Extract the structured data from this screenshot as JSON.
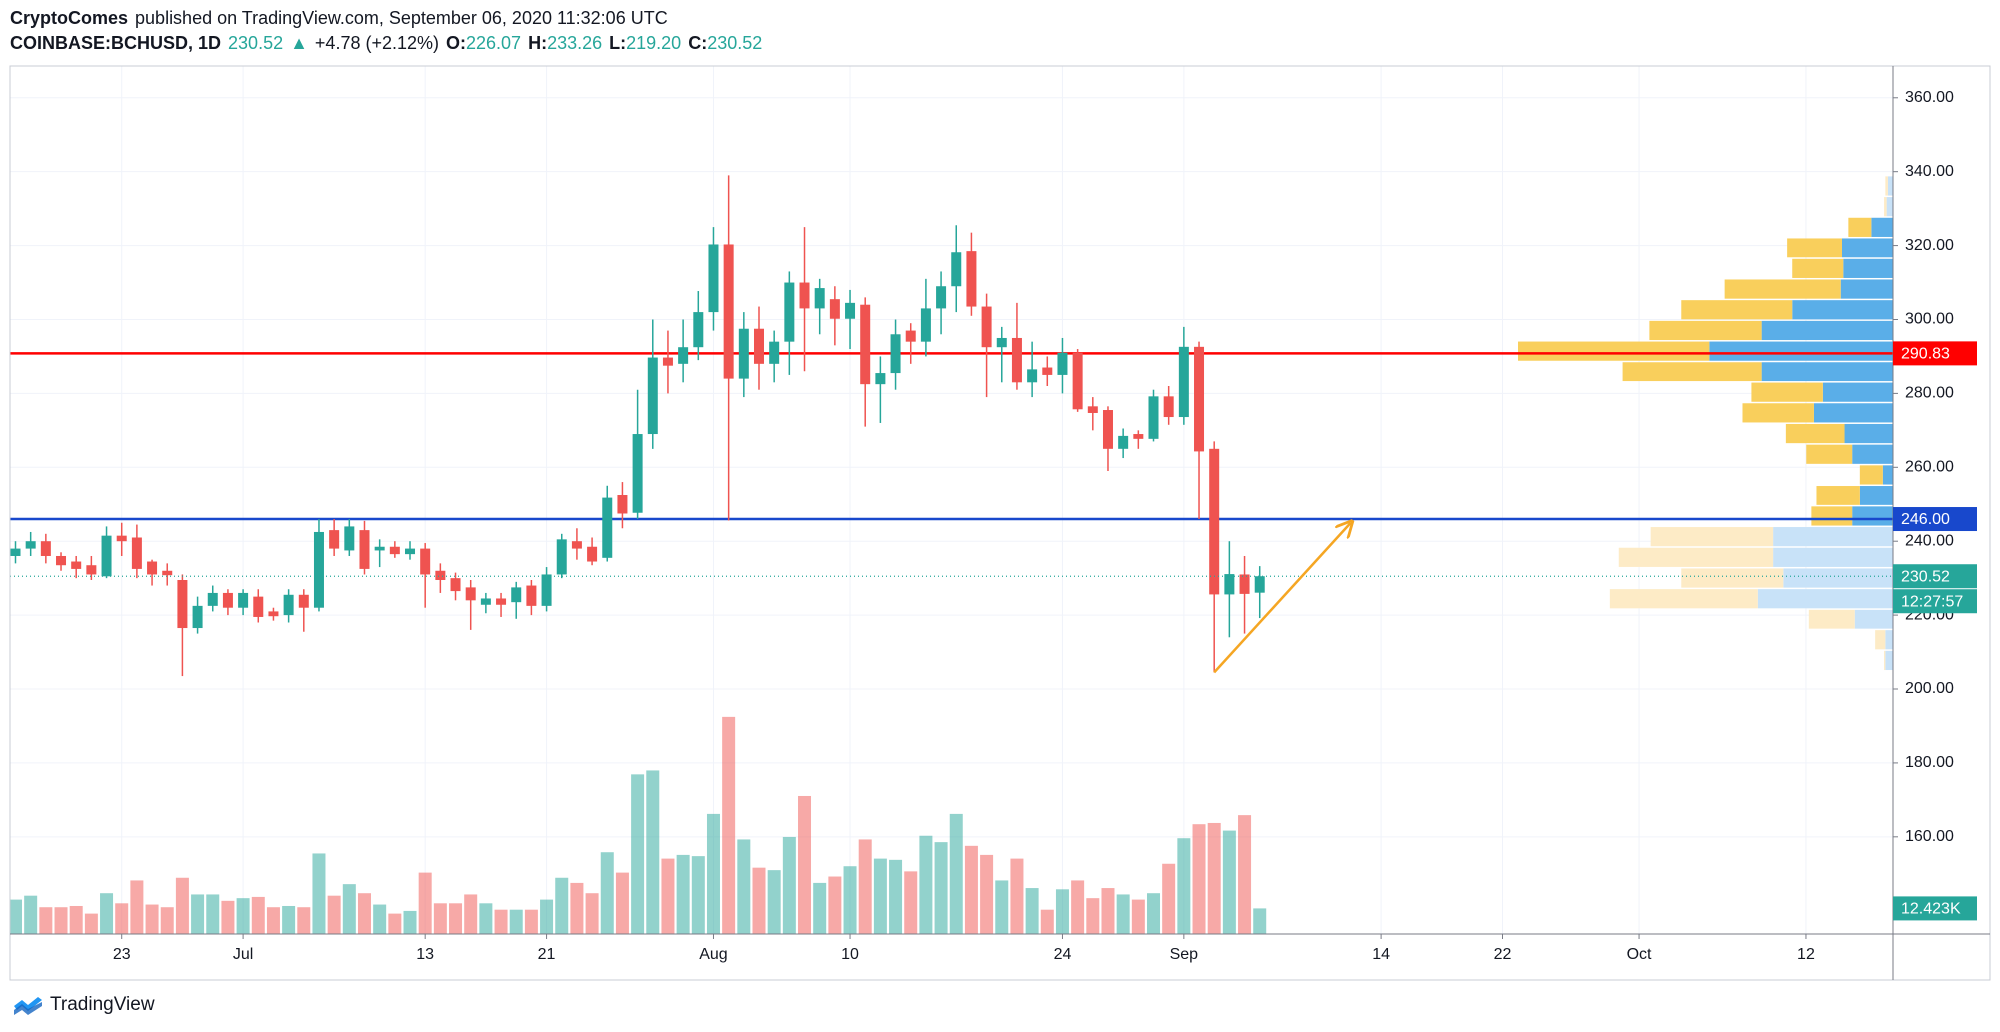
{
  "header": {
    "author": "CryptoComes",
    "published": "published on TradingView.com, September 06, 2020 11:32:06 UTC",
    "symbol": "COINBASE:BCHUSD, 1D",
    "last": "230.52",
    "arrow": "▲",
    "change": "+4.78 (+2.12%)",
    "o_label": "O:",
    "open": "226.07",
    "h_label": "H:",
    "high": "233.26",
    "l_label": "L:",
    "low": "219.20",
    "c_label": "C:",
    "close": "230.52"
  },
  "footer": {
    "brand": "TradingView"
  },
  "chart_data": {
    "type": "candlestick",
    "x": [
      "06-16",
      "06-17",
      "06-18",
      "06-19",
      "06-20",
      "06-21",
      "06-22",
      "06-23",
      "06-24",
      "06-25",
      "06-26",
      "06-27",
      "06-28",
      "06-29",
      "06-30",
      "07-01",
      "07-02",
      "07-03",
      "07-04",
      "07-05",
      "07-06",
      "07-07",
      "07-08",
      "07-09",
      "07-10",
      "07-11",
      "07-12",
      "07-13",
      "07-14",
      "07-15",
      "07-16",
      "07-17",
      "07-18",
      "07-19",
      "07-20",
      "07-21",
      "07-22",
      "07-23",
      "07-24",
      "07-25",
      "07-26",
      "07-27",
      "07-28",
      "07-29",
      "07-30",
      "07-31",
      "08-01",
      "08-02",
      "08-03",
      "08-04",
      "08-05",
      "08-06",
      "08-07",
      "08-08",
      "08-09",
      "08-10",
      "08-11",
      "08-12",
      "08-13",
      "08-14",
      "08-15",
      "08-16",
      "08-17",
      "08-18",
      "08-19",
      "08-20",
      "08-21",
      "08-22",
      "08-23",
      "08-24",
      "08-25",
      "08-26",
      "08-27",
      "08-28",
      "08-29",
      "08-30",
      "08-31",
      "09-01",
      "09-02",
      "09-03",
      "09-04",
      "09-05",
      "09-06"
    ],
    "open": [
      236,
      238,
      240,
      236,
      234.5,
      233.5,
      230.5,
      241.5,
      241,
      234.5,
      232,
      229.5,
      216.5,
      222.5,
      226,
      222,
      225,
      221,
      220,
      225.5,
      222,
      243,
      237.5,
      243,
      237.5,
      238.5,
      236.5,
      238,
      232,
      230,
      227.5,
      222.8,
      224.5,
      223.5,
      228,
      222.5,
      231,
      240,
      238.5,
      235.5,
      252.5,
      247.7,
      269,
      289.7,
      288,
      292.5,
      302,
      320.3,
      284,
      297.5,
      288,
      294,
      310,
      303,
      305.5,
      300.2,
      304,
      282.5,
      285.5,
      297,
      294,
      303,
      309,
      318.5,
      303.5,
      292.5,
      295,
      283,
      287,
      285,
      291,
      276.5,
      275.5,
      265,
      269,
      267.7,
      279.2,
      273.6,
      292.6,
      265,
      225.6,
      231,
      226.07
    ],
    "high": [
      240,
      242.5,
      242,
      237,
      236,
      236,
      244,
      245,
      244.5,
      235,
      234,
      231,
      225,
      228,
      227,
      227,
      227,
      222,
      227,
      227,
      246,
      246,
      246,
      245.5,
      240.5,
      240,
      240,
      239.5,
      234,
      231.5,
      229.5,
      226,
      226,
      229,
      229.5,
      233,
      242,
      243.5,
      241,
      255,
      256,
      281,
      300,
      297,
      300,
      307.7,
      325,
      339,
      302,
      303.5,
      297,
      313,
      325,
      311,
      309,
      308,
      306,
      290,
      300,
      299,
      311,
      313,
      325.5,
      323.5,
      307,
      298,
      304.5,
      294,
      290,
      295,
      292,
      279,
      276.5,
      270.5,
      270,
      281,
      282,
      298,
      294,
      267,
      240,
      236,
      233.26
    ],
    "low": [
      234,
      236,
      234,
      232,
      230,
      229.5,
      230,
      236,
      230,
      228,
      228,
      203.5,
      215,
      221,
      220,
      220,
      218,
      218.5,
      218,
      215.5,
      221,
      236,
      236,
      231,
      233,
      235.5,
      235,
      222,
      226,
      224,
      216,
      220.5,
      219.5,
      219,
      220,
      221,
      230,
      235,
      233.5,
      234.5,
      243.5,
      246,
      265,
      280,
      283,
      289,
      297,
      245.6,
      279,
      281,
      283,
      285,
      286,
      296,
      293,
      292,
      271,
      272,
      281,
      288,
      290,
      296,
      302,
      301,
      279,
      283,
      281,
      279,
      282,
      280,
      275,
      270,
      259,
      262.5,
      265,
      267,
      271.5,
      271.5,
      246,
      204.5,
      214,
      215,
      219.2
    ],
    "close": [
      238,
      240,
      236,
      233.5,
      232.5,
      231,
      241.5,
      240,
      232.5,
      231,
      230.8,
      216.5,
      222.5,
      226,
      222,
      226,
      219.5,
      219.7,
      225.5,
      222,
      242.5,
      238,
      244,
      232.5,
      238.5,
      236.5,
      238,
      231,
      229.5,
      226.5,
      224,
      224.5,
      222.8,
      227.5,
      222.5,
      231,
      240.5,
      238,
      234.5,
      251.8,
      247.5,
      269,
      289.7,
      287.5,
      292.5,
      302,
      320.3,
      284,
      297.5,
      288,
      294,
      310,
      303,
      308.5,
      300.2,
      304.5,
      282.5,
      285.5,
      296,
      294,
      303,
      309,
      318.2,
      303.5,
      292.5,
      295,
      283,
      286.5,
      285,
      291,
      275.7,
      274.7,
      265,
      268.5,
      267.7,
      279.2,
      273.6,
      292.6,
      264.3,
      225.6,
      231.1,
      225.74,
      230.52
    ],
    "volume": [
      16.7,
      18.6,
      13.0,
      13.0,
      13.6,
      9.9,
      19.8,
      14.9,
      26.0,
      14.3,
      13.0,
      27.3,
      19.2,
      19.2,
      16.1,
      17.4,
      18.0,
      13.0,
      13.6,
      13.0,
      39.1,
      18.6,
      24.2,
      19.8,
      14.3,
      9.9,
      11.2,
      29.8,
      14.9,
      14.9,
      19.2,
      14.9,
      11.8,
      11.8,
      11.8,
      16.7,
      27.3,
      24.8,
      19.8,
      39.7,
      29.8,
      77.5,
      79.4,
      36.6,
      38.4,
      37.8,
      58.3,
      105.4,
      45.9,
      32.2,
      31.0,
      47.1,
      67.0,
      24.8,
      27.9,
      32.9,
      45.9,
      36.6,
      36.0,
      30.4,
      47.7,
      44.6,
      58.3,
      42.8,
      38.4,
      26.0,
      36.6,
      22.3,
      11.8,
      21.7,
      26.0,
      17.4,
      22.3,
      19.2,
      16.7,
      19.8,
      34.1,
      46.5,
      53.3,
      53.9,
      50.2,
      57.7,
      12.423
    ],
    "volume_label": "12.423K",
    "countdown": "12:27:57",
    "up_color": "#26a69a",
    "down_color": "#ef5350",
    "xlim": [
      "06-16",
      "10-18"
    ],
    "xticks": [
      {
        "value": "06-23",
        "label": "23"
      },
      {
        "value": "07-01",
        "label": "Jul"
      },
      {
        "value": "07-13",
        "label": "13"
      },
      {
        "value": "07-21",
        "label": "21"
      },
      {
        "value": "08-01",
        "label": "Aug"
      },
      {
        "value": "08-10",
        "label": "10"
      },
      {
        "value": "08-24",
        "label": "24"
      },
      {
        "value": "09-01",
        "label": "Sep"
      },
      {
        "value": "09-14",
        "label": "14"
      },
      {
        "value": "09-22",
        "label": "22"
      },
      {
        "value": "10-01",
        "label": "Oct"
      },
      {
        "value": "10-12",
        "label": "12"
      }
    ],
    "ylim": [
      133.7,
      368.6
    ],
    "yticks": [
      {
        "value": 160,
        "label": "160.00"
      },
      {
        "value": 180,
        "label": "180.00"
      },
      {
        "value": 200,
        "label": "200.00"
      },
      {
        "value": 220,
        "label": "220.00"
      },
      {
        "value": 240,
        "label": "240.00"
      },
      {
        "value": 260,
        "label": "260.00"
      },
      {
        "value": 280,
        "label": "280.00"
      },
      {
        "value": 300,
        "label": "300.00"
      },
      {
        "value": 320,
        "label": "320.00"
      },
      {
        "value": 340,
        "label": "340.00"
      },
      {
        "value": 360,
        "label": "360.00"
      }
    ],
    "grid": true,
    "levels": [
      {
        "value": 290.83,
        "color": "#ff0000"
      },
      {
        "value": 246,
        "label": "246.00",
        "color": "#1848cc"
      }
    ],
    "arrow": {
      "x": [
        "09-03",
        "09-12"
      ],
      "y": [
        204.5,
        245
      ],
      "color": "#f5a623"
    },
    "profile": {
      "bins": [
        205.0,
        210.6,
        216.2,
        221.7,
        227.3,
        232.9,
        238.5,
        244.1,
        249.7,
        255.2,
        260.8,
        266.4,
        272.0,
        277.6,
        283.2,
        288.7,
        294.3,
        299.9,
        305.5,
        311.1,
        316.7,
        322.2,
        327.8,
        333.4,
        339.0
      ],
      "up": [
        6,
        6,
        30,
        106,
        86,
        94,
        94,
        32,
        26,
        8,
        32,
        38,
        62,
        55,
        103,
        144,
        103,
        79,
        41,
        39,
        40,
        17,
        5,
        4
      ],
      "down": [
        1,
        8,
        36,
        116,
        80,
        121,
        96,
        32,
        34,
        18,
        36,
        46,
        56,
        56,
        109,
        150,
        88,
        87,
        91,
        40,
        43,
        18,
        2,
        2
      ],
      "value_area": [
        244.1,
        327.8
      ],
      "up_color": "#5aaee8",
      "down_color": "#f9cf5c",
      "up_faded": "#c8e2f8",
      "down_faded": "#fdebc6"
    }
  }
}
